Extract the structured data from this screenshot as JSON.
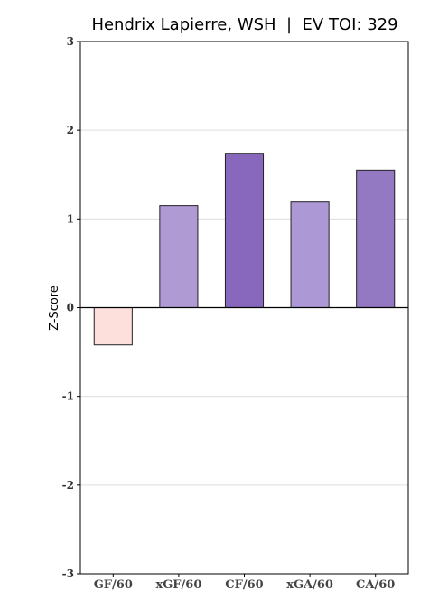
{
  "chart_data": {
    "type": "bar",
    "title": "Hendrix Lapierre, WSH  |  EV TOI: 329",
    "xlabel": "",
    "ylabel": "Z-Score",
    "categories": [
      "GF/60",
      "xGF/60",
      "CF/60",
      "xGA/60",
      "CA/60"
    ],
    "values": [
      -0.42,
      1.15,
      1.74,
      1.19,
      1.55
    ],
    "colors": [
      "#fde0dc",
      "#b09ad4",
      "#8868bc",
      "#ac98d4",
      "#9378c2"
    ],
    "ylim": [
      -3,
      3
    ],
    "yticks": [
      3,
      2,
      1,
      0,
      -1,
      -2,
      -3
    ],
    "ytick_labels": [
      "3",
      "2",
      "1",
      "0",
      "-1",
      "-2",
      "-3"
    ],
    "grid": true,
    "legend": "none"
  }
}
